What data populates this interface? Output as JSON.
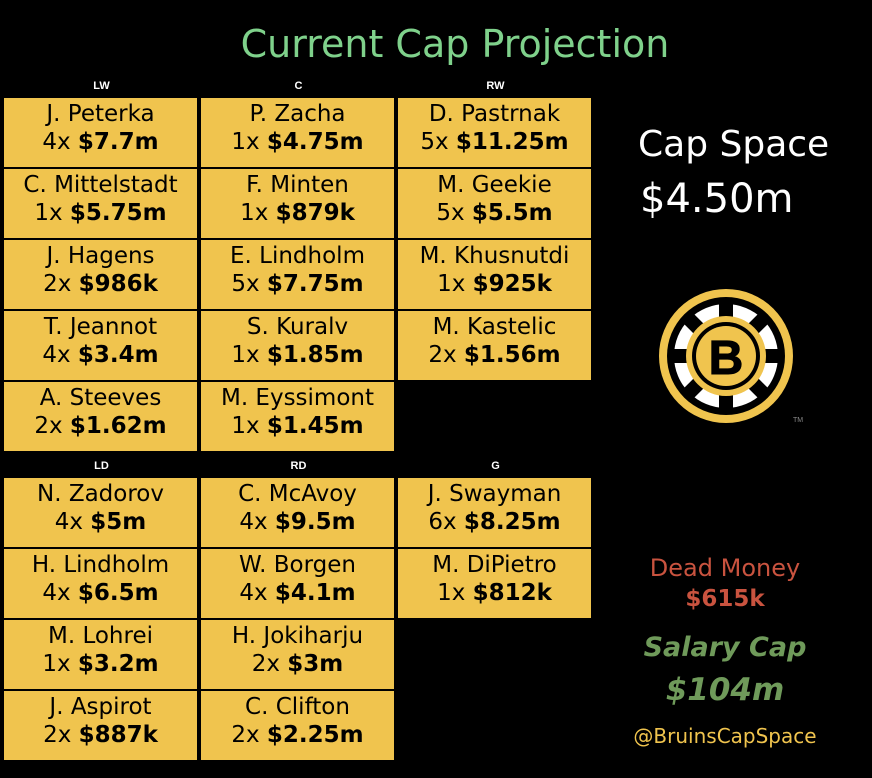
{
  "title": "Current Cap Projection",
  "forwards": {
    "headers": [
      "LW",
      "C",
      "RW"
    ],
    "columns": [
      [
        {
          "name": "J. Peterka",
          "years": "4x",
          "amount": "$7.7m"
        },
        {
          "name": "C. Mittelstadt",
          "years": "1x",
          "amount": "$5.75m"
        },
        {
          "name": "J. Hagens",
          "years": "2x",
          "amount": "$986k"
        },
        {
          "name": "T. Jeannot",
          "years": "4x",
          "amount": "$3.4m"
        },
        {
          "name": "A. Steeves",
          "years": "2x",
          "amount": "$1.62m"
        }
      ],
      [
        {
          "name": "P. Zacha",
          "years": "1x",
          "amount": "$4.75m"
        },
        {
          "name": "F. Minten",
          "years": "1x",
          "amount": "$879k"
        },
        {
          "name": "E. Lindholm",
          "years": "5x",
          "amount": "$7.75m"
        },
        {
          "name": "S. Kuralv",
          "years": "1x",
          "amount": "$1.85m"
        },
        {
          "name": "M. Eyssimont",
          "years": "1x",
          "amount": "$1.45m"
        }
      ],
      [
        {
          "name": "D. Pastrnak",
          "years": "5x",
          "amount": "$11.25m"
        },
        {
          "name": "M. Geekie",
          "years": "5x",
          "amount": "$5.5m"
        },
        {
          "name": "M. Khusnutdi",
          "years": "1x",
          "amount": "$925k"
        },
        {
          "name": "M. Kastelic",
          "years": "2x",
          "amount": "$1.56m"
        }
      ]
    ]
  },
  "defense": {
    "headers": [
      "LD",
      "RD",
      "G"
    ],
    "columns": [
      [
        {
          "name": "N. Zadorov",
          "years": "4x",
          "amount": "$5m"
        },
        {
          "name": "H. Lindholm",
          "years": "4x",
          "amount": "$6.5m"
        },
        {
          "name": "M. Lohrei",
          "years": "1x",
          "amount": "$3.2m"
        },
        {
          "name": "J. Aspirot",
          "years": "2x",
          "amount": "$887k"
        }
      ],
      [
        {
          "name": "C. McAvoy",
          "years": "4x",
          "amount": "$9.5m"
        },
        {
          "name": "W. Borgen",
          "years": "4x",
          "amount": "$4.1m"
        },
        {
          "name": "H. Jokiharju",
          "years": "2x",
          "amount": "$3m"
        },
        {
          "name": "C. Clifton",
          "years": "2x",
          "amount": "$2.25m"
        }
      ],
      [
        {
          "name": "J. Swayman",
          "years": "6x",
          "amount": "$8.25m"
        },
        {
          "name": "M. DiPietro",
          "years": "1x",
          "amount": "$812k"
        }
      ]
    ]
  },
  "cap_space": {
    "label": "Cap Space",
    "value": "$4.50m"
  },
  "dead_money": {
    "label": "Dead Money",
    "value": "$615k"
  },
  "salary_cap": {
    "label": "Salary Cap",
    "value": "$104m"
  },
  "handle": "@BruinsCapSpace",
  "logo": {
    "letter": "B",
    "trademark": "TM",
    "icon": "bruins-logo-icon"
  },
  "colors": {
    "title": "#7fd18b",
    "cell": "#f0c44e",
    "dead": "#c9533f",
    "salary": "#6f9a5a"
  }
}
